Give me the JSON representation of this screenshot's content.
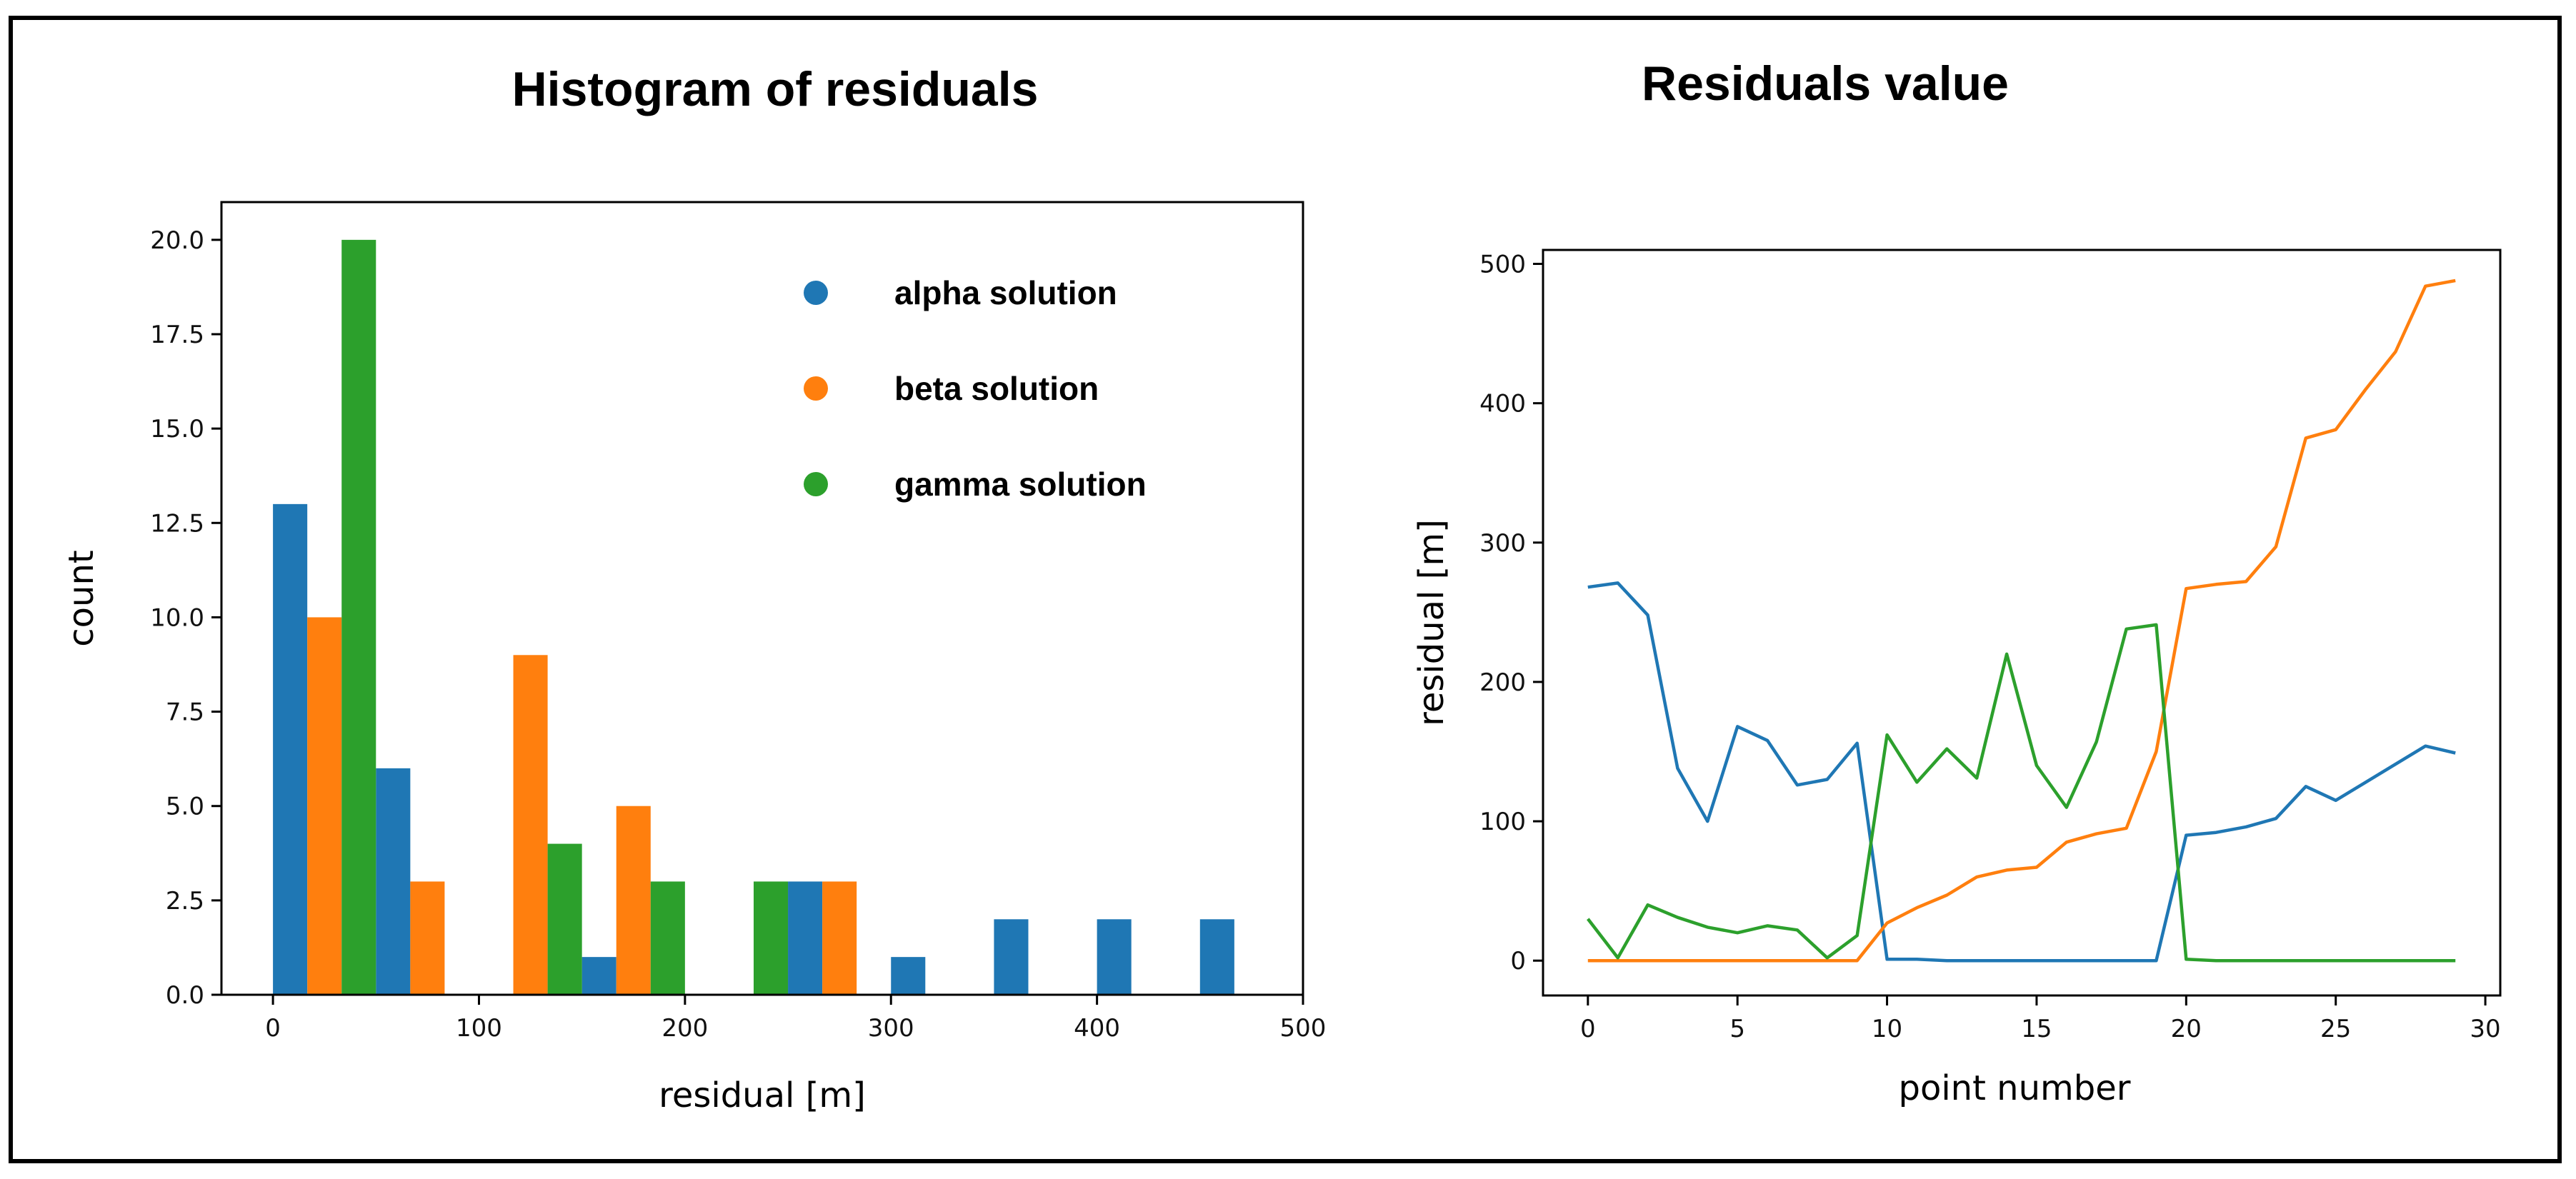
{
  "colors": {
    "alpha": "#1f77b4",
    "beta": "#ff7f0e",
    "gamma": "#2ca02c"
  },
  "chart_data": [
    {
      "type": "bar",
      "title": "Histogram of residuals",
      "xlabel": "residual [m]",
      "ylabel": "count",
      "xlim": [
        -25,
        500
      ],
      "ylim": [
        0,
        21
      ],
      "xticks": [
        0,
        100,
        200,
        300,
        400,
        500
      ],
      "xtick_labels": [
        "0",
        "100",
        "200",
        "300",
        "400",
        "500"
      ],
      "yticks": [
        0,
        2.5,
        5,
        7.5,
        10,
        12.5,
        15,
        17.5,
        20
      ],
      "ytick_labels": [
        "0.0",
        "2.5",
        "5.0",
        "7.5",
        "10.0",
        "12.5",
        "15.0",
        "17.5",
        "20.0"
      ],
      "bin_centers": [
        25,
        75,
        125,
        175,
        225,
        275,
        325,
        375,
        425,
        475
      ],
      "bin_width": 50,
      "legend": "top-right",
      "series": [
        {
          "name": "alpha solution",
          "color": "#1f77b4",
          "values": [
            13,
            6,
            0,
            1,
            0,
            3,
            1,
            2,
            2,
            2
          ]
        },
        {
          "name": "beta solution",
          "color": "#ff7f0e",
          "values": [
            10,
            3,
            9,
            5,
            0,
            3,
            0,
            0,
            0,
            0
          ]
        },
        {
          "name": "gamma solution",
          "color": "#2ca02c",
          "values": [
            20,
            0,
            4,
            3,
            3,
            0,
            0,
            0,
            0,
            0
          ]
        }
      ]
    },
    {
      "type": "line",
      "title": "Residuals value",
      "xlabel": "point number",
      "ylabel": "residual [m]",
      "xlim": [
        -1.5,
        30.5
      ],
      "ylim": [
        -25,
        510
      ],
      "xticks": [
        0,
        5,
        10,
        15,
        20,
        25,
        30
      ],
      "xtick_labels": [
        "0",
        "5",
        "10",
        "15",
        "20",
        "25",
        "30"
      ],
      "yticks": [
        0,
        100,
        200,
        300,
        400,
        500
      ],
      "ytick_labels": [
        "0",
        "100",
        "200",
        "300",
        "400",
        "500"
      ],
      "x": [
        0,
        1,
        2,
        3,
        4,
        5,
        6,
        7,
        8,
        9,
        10,
        11,
        12,
        13,
        14,
        15,
        16,
        17,
        18,
        19,
        20,
        21,
        22,
        23,
        24,
        25,
        26,
        27,
        28,
        29
      ],
      "series": [
        {
          "color": "#1f77b4",
          "values": [
            268,
            271,
            248,
            138,
            100,
            168,
            158,
            126,
            130,
            156,
            1,
            1,
            0,
            0,
            0,
            0,
            0,
            0,
            0,
            0,
            90,
            92,
            96,
            102,
            125,
            115,
            128,
            141,
            154,
            149
          ]
        },
        {
          "color": "#ff7f0e",
          "values": [
            0,
            0,
            0,
            0,
            0,
            0,
            0,
            0,
            0,
            0,
            27,
            38,
            47,
            60,
            65,
            67,
            85,
            91,
            95,
            150,
            267,
            270,
            272,
            297,
            375,
            381,
            410,
            437,
            484,
            488
          ]
        },
        {
          "color": "#2ca02c",
          "values": [
            30,
            2,
            40,
            31,
            24,
            20,
            25,
            22,
            2,
            18,
            162,
            128,
            152,
            131,
            220,
            140,
            110,
            157,
            238,
            241,
            1,
            0,
            0,
            0,
            0,
            0,
            0,
            0,
            0,
            0
          ]
        }
      ]
    }
  ]
}
